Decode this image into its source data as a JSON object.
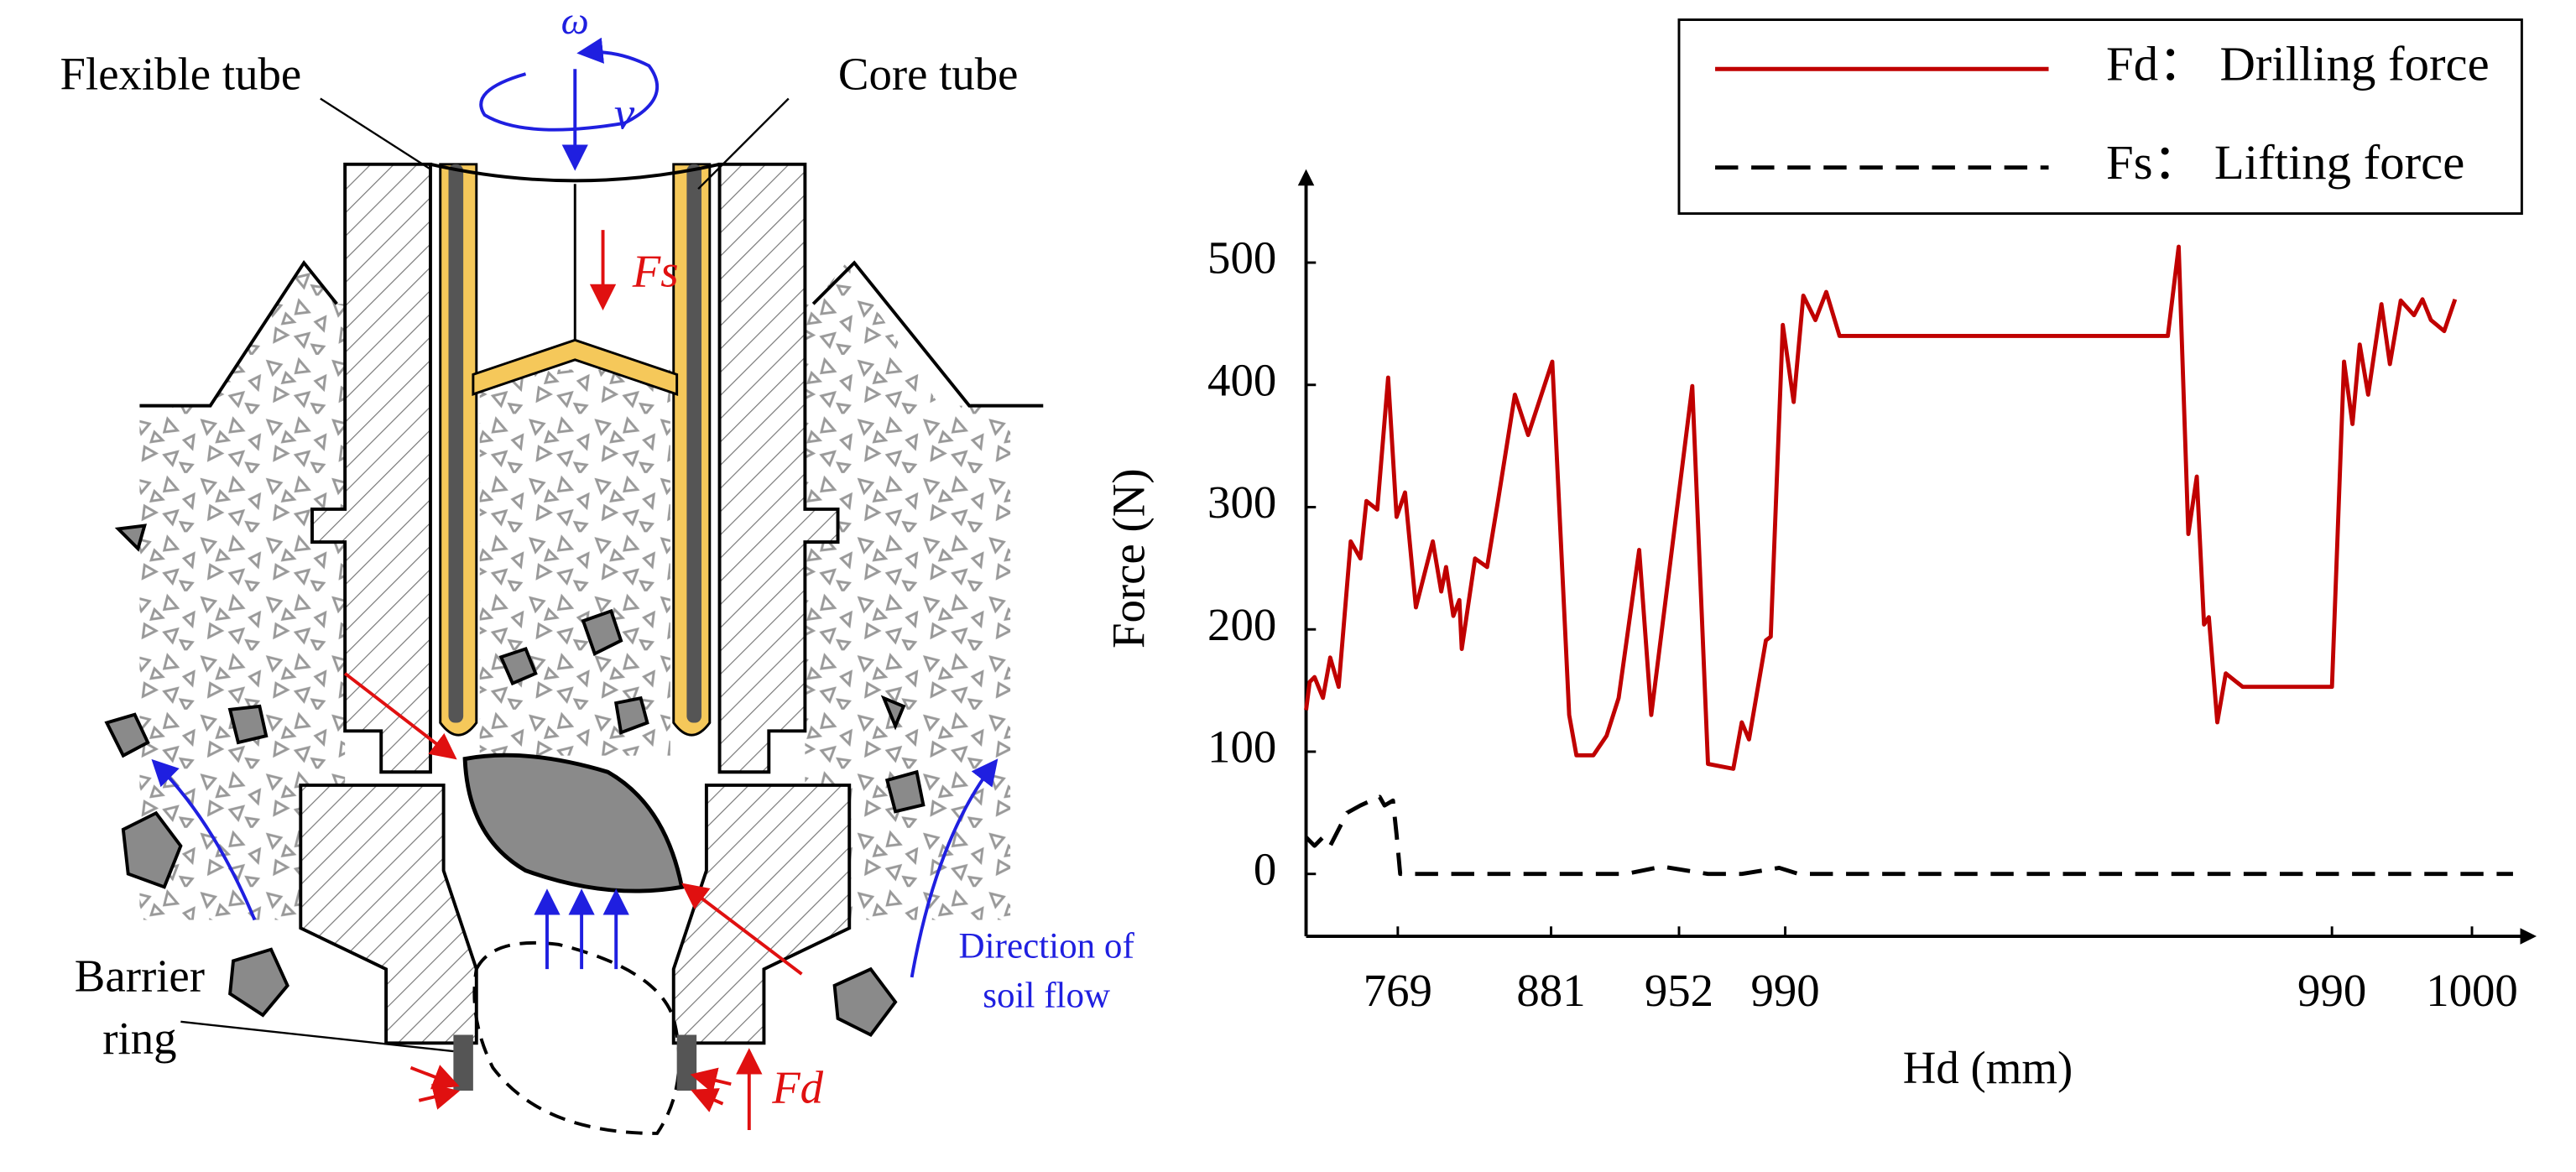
{
  "chart_data": {
    "type": "line",
    "xlabel": "Hd (mm)",
    "ylabel": "Force (N)",
    "xlim": [
      0,
      101
    ],
    "ylim": [
      -51,
      567
    ],
    "xticks": [
      {
        "value": 7.6,
        "label": "769"
      },
      {
        "value": 20.3,
        "label": "881"
      },
      {
        "value": 30.9,
        "label": "952"
      },
      {
        "value": 39.7,
        "label": "990"
      },
      {
        "value": 85.0,
        "label": "990"
      },
      {
        "value": 96.6,
        "label": "1000"
      }
    ],
    "yticks": [
      0,
      100,
      200,
      300,
      400,
      500
    ],
    "grid": false,
    "legend": "top-right",
    "series": [
      {
        "name": "Fd： Drilling force",
        "color": "#c00000",
        "dash": false,
        "x": [
          0,
          0.3,
          0.7,
          1.4,
          2.0,
          2.7,
          3.7,
          4.5,
          5.0,
          5.9,
          6.8,
          7.5,
          8.2,
          9.1,
          10.5,
          11.2,
          11.6,
          12.2,
          12.7,
          12.9,
          14.0,
          15.0,
          15.9,
          17.3,
          18.4,
          20.4,
          21.8,
          22.4,
          23.8,
          24.9,
          25.9,
          27.6,
          28.6,
          32.0,
          33.3,
          35.4,
          36.1,
          36.7,
          38.1,
          38.5,
          39.5,
          40.4,
          41.2,
          42.2,
          43.1,
          44.2,
          71.4,
          72.3,
          73.1,
          73.8,
          74.4,
          74.8,
          75.5,
          76.2,
          77.6,
          85.0,
          86.0,
          86.7,
          87.3,
          88.0,
          89.1,
          89.8,
          90.7,
          91.8,
          92.5,
          93.2,
          94.3,
          95.2
        ],
        "values": [
          134,
          157,
          161,
          144,
          177,
          153,
          272,
          258,
          305,
          298,
          406,
          292,
          312,
          218,
          272,
          231,
          251,
          211,
          224,
          184,
          258,
          251,
          305,
          392,
          359,
          419,
          130,
          97,
          97,
          113,
          144,
          265,
          130,
          399,
          90,
          86,
          124,
          110,
          191,
          194,
          449,
          386,
          473,
          453,
          476,
          440,
          440,
          513,
          278,
          325,
          204,
          210,
          124,
          164,
          153,
          153,
          419,
          368,
          433,
          392,
          466,
          417,
          469,
          457,
          470,
          453,
          444,
          470
        ]
      },
      {
        "name": "Fs： Lifting force",
        "color": "#000000",
        "dash": true,
        "x": [
          0,
          0.7,
          1.4,
          2.0,
          3.4,
          4.5,
          5.4,
          6.1,
          6.5,
          7.2,
          7.5,
          7.8,
          26.5,
          29.5,
          33.3,
          36.1,
          39.2,
          40.8,
          100
        ],
        "values": [
          30,
          23,
          30,
          23,
          50,
          56,
          60,
          63,
          56,
          60,
          32,
          0,
          0,
          6,
          0,
          0,
          5,
          0,
          0
        ]
      }
    ]
  },
  "diagram": {
    "labels": {
      "omega": "ω",
      "v": "v",
      "flexible_tube": "Flexible tube",
      "core_tube": "Core tube",
      "fs": "Fs",
      "barrier_ring": [
        "Barrier",
        "ring"
      ],
      "soil_flow": [
        "Direction of",
        "soil flow"
      ],
      "fd": "Fd"
    }
  }
}
